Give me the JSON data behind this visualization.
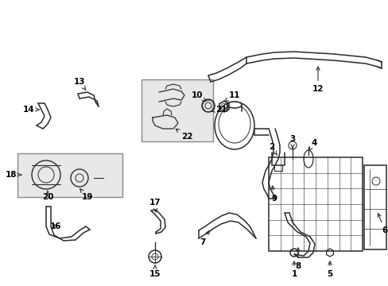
{
  "background_color": "#ffffff",
  "line_color": "#2a2a2a",
  "label_color": "#000000",
  "box_fill": "#e8e8e8",
  "box_edge": "#888888"
}
